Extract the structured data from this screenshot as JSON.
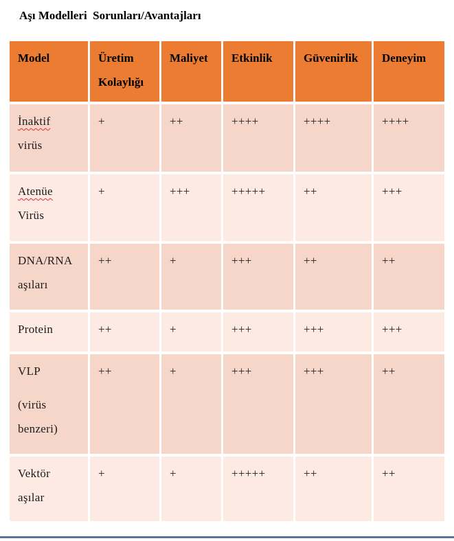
{
  "title": "Aşı Modelleri  Sorunları/Avantajları",
  "colors": {
    "header_bg": "#EC7C31",
    "row_dark": "#F6D6C9",
    "row_light": "#FCEAE3",
    "header_text": "#000000",
    "body_text": "#1C1C1C",
    "spellcheck_underline": "#E53030",
    "bottom_border": "#5D7493",
    "cell_gap": "#FFFFFF"
  },
  "table": {
    "columns": [
      {
        "id": "model",
        "lines": [
          "Model"
        ]
      },
      {
        "id": "uretim-kolayligi",
        "lines": [
          "Üretim",
          "Kolaylığı"
        ]
      },
      {
        "id": "maliyet",
        "lines": [
          "Maliyet"
        ]
      },
      {
        "id": "etkinlik",
        "lines": [
          "Etkinlik"
        ]
      },
      {
        "id": "guvenirlik",
        "lines": [
          "Güvenirlik"
        ]
      },
      {
        "id": "deneyim",
        "lines": [
          "Deneyim"
        ]
      }
    ],
    "rows": [
      {
        "model_lines": [
          "İnaktif",
          "virüs"
        ],
        "misspelled_line": 0,
        "values": [
          "+",
          "++",
          "++++",
          "++++",
          "++++"
        ]
      },
      {
        "model_lines": [
          "Atenüe",
          "Virüs"
        ],
        "misspelled_line": 0,
        "values": [
          "+",
          "+++",
          "+++++",
          "++",
          "+++"
        ]
      },
      {
        "model_lines": [
          "DNA/RNA",
          "aşıları"
        ],
        "misspelled_line": -1,
        "values": [
          "++",
          "+",
          "+++",
          "++",
          "++"
        ]
      },
      {
        "model_lines": [
          "Protein"
        ],
        "misspelled_line": -1,
        "values": [
          "++",
          "+",
          "+++",
          "+++",
          "+++"
        ]
      },
      {
        "model_lines": [
          "VLP",
          "",
          "(virüs",
          "benzeri)"
        ],
        "misspelled_line": -1,
        "values": [
          "++",
          "+",
          "+++",
          "+++",
          "++"
        ]
      },
      {
        "model_lines": [
          "Vektör",
          "aşılar"
        ],
        "misspelled_line": -1,
        "values": [
          "+",
          "+",
          "+++++",
          "++",
          "++"
        ]
      }
    ]
  }
}
